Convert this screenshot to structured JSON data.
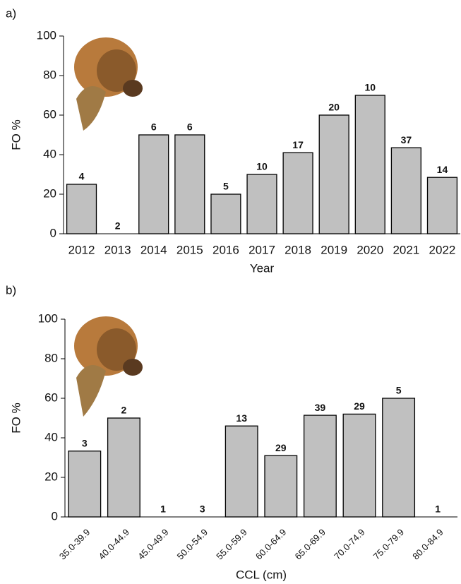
{
  "chart_data": [
    {
      "type": "bar",
      "panel_label": "a)",
      "y_label": "FO %",
      "x_label": "Year",
      "categories": [
        "2012",
        "2013",
        "2014",
        "2015",
        "2016",
        "2017",
        "2018",
        "2019",
        "2020",
        "2021",
        "2022"
      ],
      "values": [
        25,
        0,
        50,
        50,
        20,
        30,
        41,
        60,
        70,
        43.5,
        28.5
      ],
      "sample_sizes": [
        4,
        2,
        6,
        6,
        5,
        10,
        17,
        20,
        10,
        37,
        14
      ],
      "color": "#c0c0c0",
      "ylim": [
        0,
        100
      ],
      "yticks": [
        0,
        20,
        40,
        60,
        80,
        100
      ],
      "x_label_rotation": 0
    },
    {
      "type": "bar",
      "panel_label": "b)",
      "y_label": "FO %",
      "x_label": "CCL (cm)",
      "categories": [
        "35.0-39.9",
        "40.0-44.9",
        "45.0-49.9",
        "50.0-54.9",
        "55.0-59.9",
        "60.0-64.9",
        "65.0-69.9",
        "70.0-74.9",
        "75.0-79.9",
        "80.0-84.9"
      ],
      "values": [
        33.3,
        50,
        0,
        0,
        46,
        31,
        51.4,
        52,
        60,
        0
      ],
      "sample_sizes": [
        3,
        2,
        1,
        3,
        13,
        29,
        39,
        29,
        5,
        1
      ],
      "color": "#c0c0c0",
      "ylim": [
        0,
        100
      ],
      "yticks": [
        0,
        20,
        40,
        60,
        80,
        100
      ],
      "x_label_rotation": -45
    }
  ]
}
